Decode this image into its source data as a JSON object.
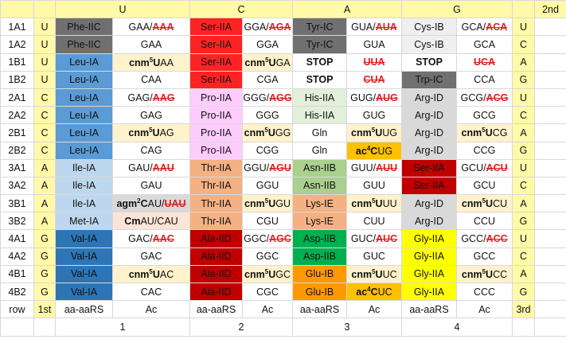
{
  "header": {
    "second_label": "2nd",
    "bases": [
      "U",
      "C",
      "A",
      "G"
    ],
    "group_numbers": [
      "1",
      "2",
      "3",
      "4"
    ]
  },
  "rows": [
    {
      "id": "1A1",
      "first": "U",
      "third": "U",
      "cells": [
        {
          "t": "Phe-IIC",
          "bg": "gray",
          "white": true
        },
        {
          "h": "GAA/<span class='red strike'>AAA</span>"
        },
        {
          "t": "Ser-IIA",
          "bg": "red",
          "white": true
        },
        {
          "h": "GGA/<span class='red strike'>AGA</span>"
        },
        {
          "t": "Tyr-IC",
          "bg": "gray",
          "white": true
        },
        {
          "h": "GUA/<span class='red strike'>AUA</span>"
        },
        {
          "t": "Cys-IB",
          "bg": "lt1"
        },
        {
          "h": "GCA/<span class='red strike'>ACA</span>"
        }
      ]
    },
    {
      "id": "1A2",
      "first": "U",
      "third": "C",
      "cells": [
        {
          "t": "Phe-IIC",
          "bg": "gray",
          "white": true
        },
        {
          "t": "GAA"
        },
        {
          "t": "Ser-IIA",
          "bg": "red",
          "white": true
        },
        {
          "t": "GGA"
        },
        {
          "t": "Tyr-IC",
          "bg": "gray",
          "white": true
        },
        {
          "t": "GUA"
        },
        {
          "t": "Cys-IB",
          "bg": "lt1"
        },
        {
          "t": "GCA"
        }
      ]
    },
    {
      "id": "1B1",
      "first": "U",
      "third": "A",
      "cells": [
        {
          "t": "Leu-IA",
          "bg": "blue1"
        },
        {
          "h": "<b>cnm<sup>5</sup>U</b>AA",
          "bg": "cream"
        },
        {
          "t": "Ser-IIA",
          "bg": "red",
          "white": true
        },
        {
          "h": "<b>cnm<sup>5</sup>U</b>GA",
          "bg": "cream"
        },
        {
          "t": "STOP",
          "stop": true
        },
        {
          "h": "<span class='red strike'>UUA</span>"
        },
        {
          "t": "STOP",
          "stop": true
        },
        {
          "h": "<span class='red strike'>UCA</span>"
        }
      ]
    },
    {
      "id": "1B2",
      "first": "U",
      "third": "G",
      "cells": [
        {
          "t": "Leu-IA",
          "bg": "blue1"
        },
        {
          "t": "CAA"
        },
        {
          "t": "Ser-IIA",
          "bg": "red",
          "white": true
        },
        {
          "t": "CGA"
        },
        {
          "t": "STOP",
          "stop": true
        },
        {
          "h": "<span class='red strike'>CUA</span>"
        },
        {
          "t": "Trp-IC",
          "bg": "gray",
          "white": true
        },
        {
          "t": "CCA"
        }
      ]
    },
    {
      "id": "2A1",
      "first": "C",
      "third": "U",
      "cells": [
        {
          "t": "Leu-IA",
          "bg": "blue1"
        },
        {
          "h": "GAG/<span class='red strike'>AAG</span>"
        },
        {
          "t": "Pro-IIA",
          "bg": "pink"
        },
        {
          "h": "GGG/<span class='red strike'>AGG</span>"
        },
        {
          "t": "His-IIA",
          "bg": "green1"
        },
        {
          "h": "GUG/<span class='red strike'>AUG</span>"
        },
        {
          "t": "Arg-ID",
          "bg": "lt2"
        },
        {
          "h": "GCG/<span class='red strike'>ACG</span>"
        }
      ]
    },
    {
      "id": "2A2",
      "first": "C",
      "third": "C",
      "cells": [
        {
          "t": "Leu-IA",
          "bg": "blue1"
        },
        {
          "t": "GAG"
        },
        {
          "t": "Pro-IIA",
          "bg": "pink"
        },
        {
          "t": "GGG"
        },
        {
          "t": "His-IIA",
          "bg": "green1"
        },
        {
          "t": "GUG"
        },
        {
          "t": "Arg-ID",
          "bg": "lt2"
        },
        {
          "t": "GCG"
        }
      ]
    },
    {
      "id": "2B1",
      "first": "C",
      "third": "A",
      "cells": [
        {
          "t": "Leu-IA",
          "bg": "blue1"
        },
        {
          "h": "<b>cnm<sup>5</sup>U</b>AG",
          "bg": "cream"
        },
        {
          "t": "Pro-IIA",
          "bg": "pink"
        },
        {
          "h": "<b>cnm<sup>5</sup>U</b>GG",
          "bg": "cream"
        },
        {
          "t": "Gln"
        },
        {
          "h": "<b>cnm<sup>5</sup>U</b>UG",
          "bg": "cream"
        },
        {
          "t": "Arg-ID",
          "bg": "lt2"
        },
        {
          "h": "<b>cnm<sup>5</sup>U</b>CG",
          "bg": "cream"
        }
      ]
    },
    {
      "id": "2B2",
      "first": "C",
      "third": "G",
      "cells": [
        {
          "t": "Leu-IA",
          "bg": "blue1"
        },
        {
          "t": "CAG"
        },
        {
          "t": "Pro-IIA",
          "bg": "pink"
        },
        {
          "t": "CGG"
        },
        {
          "t": "Gln"
        },
        {
          "h": "<b>ac<sup>4</sup>C</b>UG",
          "bg": "gold"
        },
        {
          "t": "Arg-ID",
          "bg": "lt2"
        },
        {
          "t": "CCG"
        }
      ]
    },
    {
      "id": "3A1",
      "first": "A",
      "third": "U",
      "cells": [
        {
          "t": "Ile-IA",
          "bg": "blue2"
        },
        {
          "h": "GAU/<span class='red strike'>AAU</span>"
        },
        {
          "t": "Thr-IIA",
          "bg": "salmon"
        },
        {
          "h": "GGU/<span class='red strike'>AGU</span>"
        },
        {
          "t": "Asn-IIB",
          "bg": "green2"
        },
        {
          "h": "GUU/<span class='red strike'>AUU</span>"
        },
        {
          "t": "Ser-IIA",
          "bg": "dkred",
          "white": true
        },
        {
          "h": "GCU/<span class='red strike'>ACU</span>"
        }
      ]
    },
    {
      "id": "3A2",
      "first": "A",
      "third": "C",
      "cells": [
        {
          "t": "Ile-IA",
          "bg": "blue2"
        },
        {
          "t": "GAU"
        },
        {
          "t": "Thr-IIA",
          "bg": "salmon"
        },
        {
          "t": "GGU"
        },
        {
          "t": "Asn-IIB",
          "bg": "green2"
        },
        {
          "t": "GUU"
        },
        {
          "t": "Ser-IIA",
          "bg": "dkred",
          "white": true
        },
        {
          "t": "GCU"
        }
      ]
    },
    {
      "id": "3B1",
      "first": "A",
      "third": "A",
      "cells": [
        {
          "t": "Ile-IA",
          "bg": "blue2"
        },
        {
          "h": "<b>agm<sup>2</sup>C</b>AU/<span class='red strike'>UAU</span>",
          "bg": "lt2"
        },
        {
          "t": "Thr-IIA",
          "bg": "salmon"
        },
        {
          "h": "<b>cnm<sup>5</sup>U</b>GU",
          "bg": "cream"
        },
        {
          "t": "Lys-IE",
          "bg": "salmon"
        },
        {
          "h": "<b>cnm<sup>5</sup>U</b>UU",
          "bg": "cream"
        },
        {
          "t": "Arg-ID",
          "bg": "lt2"
        },
        {
          "h": "<b>cnm<sup>5</sup>U</b>CU",
          "bg": "cream"
        }
      ]
    },
    {
      "id": "3B2",
      "first": "A",
      "third": "G",
      "cells": [
        {
          "t": "Met-IA",
          "bg": "blue2"
        },
        {
          "h": "<b>Cm</b>AU/CAU",
          "bg": "peach"
        },
        {
          "t": "Thr-IIA",
          "bg": "salmon"
        },
        {
          "t": "CGU"
        },
        {
          "t": "Lys-IE",
          "bg": "salmon"
        },
        {
          "t": "CUU"
        },
        {
          "t": "Arg-ID",
          "bg": "lt2"
        },
        {
          "t": "CCU"
        }
      ]
    },
    {
      "id": "4A1",
      "first": "G",
      "third": "U",
      "cells": [
        {
          "t": "Val-IA",
          "bg": "blue3"
        },
        {
          "h": "GAC/<span class='red strike'>AAC</span>"
        },
        {
          "t": "Ala-IID",
          "bg": "dkred",
          "white": true
        },
        {
          "h": "GGC/<span class='red strike'>AGC</span>"
        },
        {
          "t": "Asp-IIB",
          "bg": "green3"
        },
        {
          "h": "GUC/<span class='red strike'>AUC</span>"
        },
        {
          "t": "Gly-IIA",
          "bg": "yellow"
        },
        {
          "h": "GCC/<span class='red strike'>ACC</span>"
        }
      ]
    },
    {
      "id": "4A2",
      "first": "G",
      "third": "C",
      "cells": [
        {
          "t": "Val-IA",
          "bg": "blue3"
        },
        {
          "t": "GAC"
        },
        {
          "t": "Ala-IID",
          "bg": "dkred",
          "white": true
        },
        {
          "t": "GGC"
        },
        {
          "t": "Asp-IIB",
          "bg": "green3"
        },
        {
          "t": "GUC"
        },
        {
          "t": "Gly-IIA",
          "bg": "yellow"
        },
        {
          "t": "GCC"
        }
      ]
    },
    {
      "id": "4B1",
      "first": "G",
      "third": "A",
      "cells": [
        {
          "t": "Val-IA",
          "bg": "blue3"
        },
        {
          "h": "<b>cnm<sup>5</sup>U</b>AC",
          "bg": "cream"
        },
        {
          "t": "Ala-IID",
          "bg": "dkred",
          "white": true
        },
        {
          "h": "<b>cnm<sup>5</sup>U</b>GC",
          "bg": "cream"
        },
        {
          "t": "Glu-IB",
          "bg": "orange"
        },
        {
          "h": "<b>cnm<sup>5</sup>U</b>UC",
          "bg": "cream"
        },
        {
          "t": "Gly-IIA",
          "bg": "yellow"
        },
        {
          "h": "<b>cnm<sup>5</sup>U</b>CC",
          "bg": "cream"
        }
      ]
    },
    {
      "id": "4B2",
      "first": "G",
      "third": "G",
      "cells": [
        {
          "t": "Val-IA",
          "bg": "blue3"
        },
        {
          "t": "CAC"
        },
        {
          "t": "Ala-IID",
          "bg": "dkred",
          "white": true
        },
        {
          "t": "CGC"
        },
        {
          "t": "Glu-IB",
          "bg": "orange"
        },
        {
          "h": "<b>ac<sup>4</sup>C</b>UC",
          "bg": "gold"
        },
        {
          "t": "Gly-IIA",
          "bg": "yellow"
        },
        {
          "t": "CCC"
        }
      ]
    }
  ],
  "footer": {
    "row_label": "row",
    "first_label": "1st",
    "third_label": "3rd",
    "cols": [
      "aa-aaRS",
      "Ac",
      "aa-aaRS",
      "Ac",
      "aa-aaRS",
      "Ac",
      "aa-aaRS",
      "Ac"
    ]
  },
  "colors": {
    "gray": "#707070",
    "red": "#ff2323",
    "dkred": "#c00000",
    "blue1": "#5b9bd5",
    "blue2": "#bdd7ee",
    "blue3": "#2e75b6",
    "lt1": "#efefef",
    "lt2": "#d9d9d9",
    "pink": "#ffccff",
    "green1": "#e2efda",
    "green2": "#a9d08e",
    "green3": "#00b050",
    "salmon": "#f4b183",
    "peach": "#fce4d6",
    "cream": "#fff2cc",
    "gold": "#ffc000",
    "orange": "#ff9900",
    "yellow": "#ffff00",
    "header_yellow": "#fff9a8",
    "strike_red": "#e02020"
  }
}
